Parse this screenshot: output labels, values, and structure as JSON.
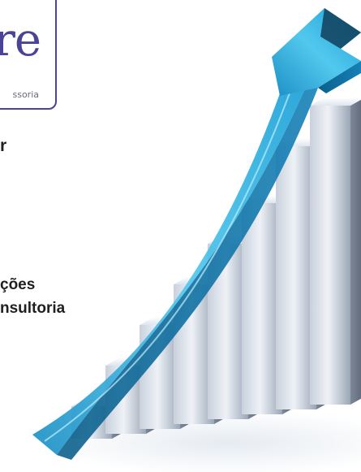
{
  "logo": {
    "letters": "re",
    "tagline": "ssoria"
  },
  "text_lines": {
    "line1": "r",
    "line2": "ções",
    "line3": "nsultoria"
  },
  "colors": {
    "brand_purple": "#4a4396",
    "arrow_cyan": "#3fb8e0",
    "text_dark": "#1f1f1f"
  },
  "illustration": {
    "subject": "growth-arrow-over-rising-bars",
    "bar_count": 8
  }
}
